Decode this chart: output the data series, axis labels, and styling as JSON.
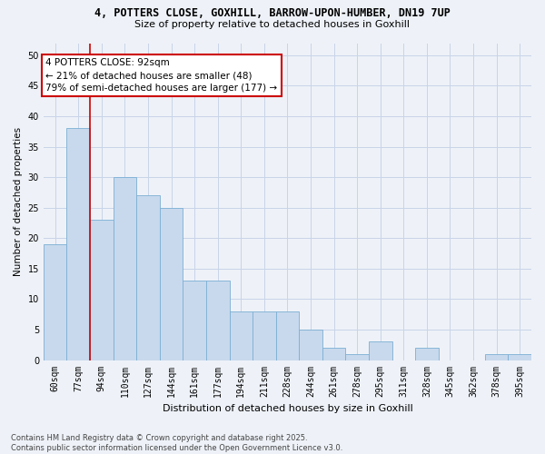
{
  "title1": "4, POTTERS CLOSE, GOXHILL, BARROW-UPON-HUMBER, DN19 7UP",
  "title2": "Size of property relative to detached houses in Goxhill",
  "xlabel": "Distribution of detached houses by size in Goxhill",
  "ylabel": "Number of detached properties",
  "categories": [
    "60sqm",
    "77sqm",
    "94sqm",
    "110sqm",
    "127sqm",
    "144sqm",
    "161sqm",
    "177sqm",
    "194sqm",
    "211sqm",
    "228sqm",
    "244sqm",
    "261sqm",
    "278sqm",
    "295sqm",
    "311sqm",
    "328sqm",
    "345sqm",
    "362sqm",
    "378sqm",
    "395sqm"
  ],
  "values": [
    19,
    38,
    23,
    30,
    27,
    25,
    13,
    13,
    8,
    8,
    8,
    5,
    2,
    1,
    3,
    0,
    2,
    0,
    0,
    1,
    1
  ],
  "bar_color": "#c8d9ed",
  "bar_edge_color": "#7bafd4",
  "grid_color": "#c8d4e8",
  "marker_line_color": "#cc0000",
  "annotation_line1": "4 POTTERS CLOSE: 92sqm",
  "annotation_line2": "← 21% of detached houses are smaller (48)",
  "annotation_line3": "79% of semi-detached houses are larger (177) →",
  "annotation_box_facecolor": "#ffffff",
  "annotation_box_edgecolor": "#cc0000",
  "ylim": [
    0,
    52
  ],
  "yticks": [
    0,
    5,
    10,
    15,
    20,
    25,
    30,
    35,
    40,
    45,
    50
  ],
  "footnote": "Contains HM Land Registry data © Crown copyright and database right 2025.\nContains public sector information licensed under the Open Government Licence v3.0.",
  "bg_color": "#eef2f8",
  "title1_fontsize": 8.5,
  "title2_fontsize": 8.0,
  "xlabel_fontsize": 8.0,
  "ylabel_fontsize": 7.5,
  "tick_fontsize": 7.0,
  "annot_fontsize": 7.5,
  "footnote_fontsize": 6.0
}
